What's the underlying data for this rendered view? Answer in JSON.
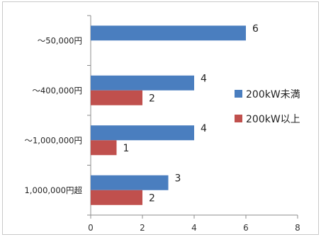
{
  "chart_data": {
    "type": "bar",
    "orientation": "horizontal",
    "categories": [
      "～50,000円",
      "～400,000円",
      "～1,000,000円",
      "1,000,000円超"
    ],
    "series": [
      {
        "name": "200kW未満",
        "values": [
          6,
          4,
          4,
          3
        ],
        "color": "#4a7ebf"
      },
      {
        "name": "200kW以上",
        "values": [
          null,
          2,
          1,
          2
        ],
        "color": "#c0504d"
      }
    ],
    "xlim": [
      0,
      8
    ],
    "xticks": [
      "0",
      "2",
      "4",
      "6",
      "8"
    ],
    "grid": false,
    "legend_position": "right",
    "data_labels": true,
    "title": "",
    "xlabel": "",
    "ylabel": ""
  }
}
